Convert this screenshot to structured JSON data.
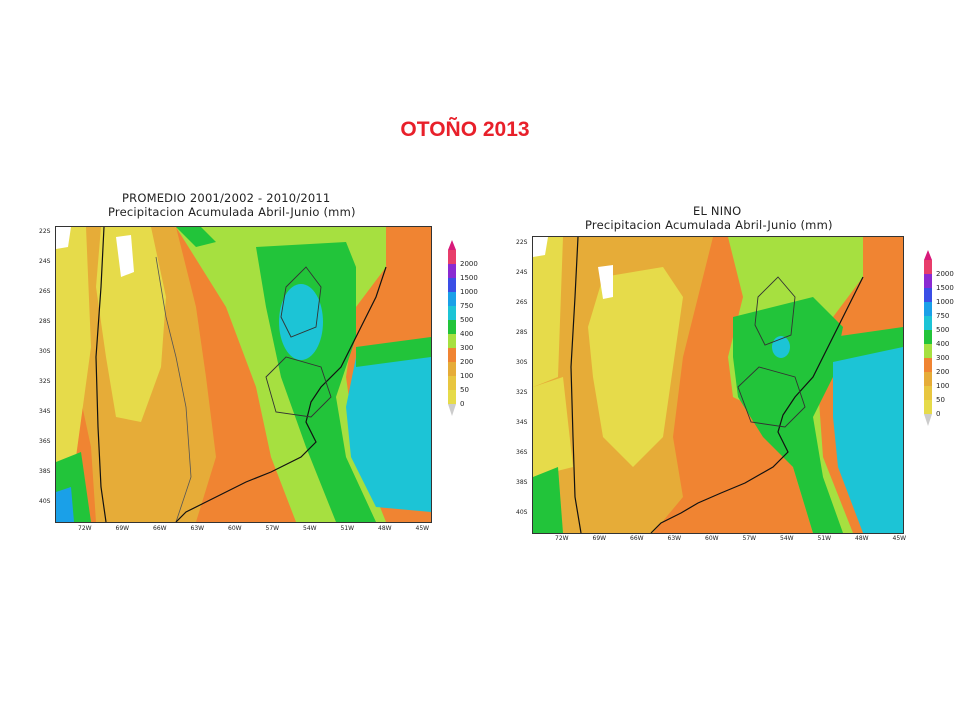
{
  "title": "OTOÑO 2013",
  "panels": [
    {
      "title_line1": "PROMEDIO 2001/2002 - 2010/2011",
      "title_line2": "Precipitacion Acumulada Abril-Junio (mm)",
      "lat_labels": [
        "22S",
        "24S",
        "26S",
        "28S",
        "30S",
        "32S",
        "34S",
        "36S",
        "38S",
        "40S"
      ],
      "lon_labels": [
        "72W",
        "69W",
        "66W",
        "63W",
        "60W",
        "57W",
        "54W",
        "51W",
        "48W",
        "45W"
      ]
    },
    {
      "title_line1": "EL NINO",
      "title_line2": "Precipitacion Acumulada Abril-Junio (mm)",
      "lat_labels": [
        "22S",
        "24S",
        "26S",
        "28S",
        "30S",
        "32S",
        "34S",
        "36S",
        "38S",
        "40S"
      ],
      "lon_labels": [
        "72W",
        "69W",
        "66W",
        "63W",
        "60W",
        "57W",
        "54W",
        "51W",
        "48W",
        "45W"
      ]
    }
  ],
  "legend_left": {
    "labels": [
      "2000",
      "1500",
      "1000",
      "750",
      "500",
      "400",
      "300",
      "200",
      "100",
      "50",
      "0"
    ]
  },
  "legend_right": {
    "labels": [
      "2000",
      "1500",
      "1000",
      "750",
      "500",
      "400",
      "300",
      "200",
      "100",
      "50",
      "0"
    ]
  },
  "colors": {
    "title": "#e8202a",
    "lt50": "#e6db4a",
    "c50": "#e8c640",
    "c100": "#e6ac38",
    "c200": "#f08432",
    "c300": "#a6e040",
    "c400": "#22c43a",
    "c500": "#1cc4d6",
    "c750": "#1aa0e8",
    "c1000": "#3a4ee6",
    "c1500": "#8a2ad2",
    "c2000": "#e83e6a",
    "top": "#d81a7a"
  }
}
